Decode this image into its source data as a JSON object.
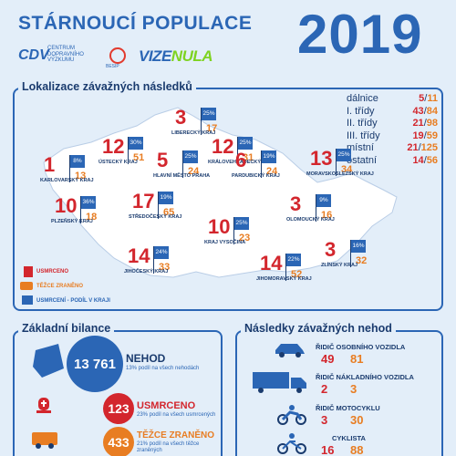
{
  "header": {
    "title": "STÁRNOUCÍ POPULACE",
    "year": "2019",
    "logos": {
      "cdv_mark": "CDV",
      "cdv_text_1": "CENTRUM",
      "cdv_text_2": "DOPRAVNÍHO",
      "cdv_text_3": "VÝZKUMU",
      "besip": "BESIP",
      "vize": "VIZE",
      "nula": "NULA"
    }
  },
  "map_section": {
    "title": "Lokalizace závažných následků",
    "road_types": [
      {
        "label": "dálnice",
        "deaths": "5",
        "injuries": "11"
      },
      {
        "label": "I. třídy",
        "deaths": "43",
        "injuries": "84"
      },
      {
        "label": "II. třídy",
        "deaths": "21",
        "injuries": "98"
      },
      {
        "label": "III. třídy",
        "deaths": "19",
        "injuries": "59"
      },
      {
        "label": "místní",
        "deaths": "21",
        "injuries": "125"
      },
      {
        "label": "ostatní",
        "deaths": "14",
        "injuries": "56"
      }
    ],
    "regions": [
      {
        "name": "KARLOVARSKÝ KRAJ",
        "deaths": "1",
        "injuries": "13",
        "share": "8%"
      },
      {
        "name": "ÚSTECKÝ KRAJ",
        "deaths": "12",
        "injuries": "51",
        "share": "30%"
      },
      {
        "name": "LIBERECKÝ KRAJ",
        "deaths": "3",
        "injuries": "17",
        "share": "25%"
      },
      {
        "name": "KRÁLOVEHRADECKÝ KRAJ",
        "deaths": "12",
        "injuries": "31",
        "share": "25%"
      },
      {
        "name": "HLAVNÍ MĚSTO PRAHA",
        "deaths": "5",
        "injuries": "24",
        "share": "25%"
      },
      {
        "name": "PARDUBICKÝ KRAJ",
        "deaths": "6",
        "injuries": "24",
        "share": "19%"
      },
      {
        "name": "PLZEŇSKÝ KRAJ",
        "deaths": "10",
        "injuries": "18",
        "share": "36%"
      },
      {
        "name": "STŘEDOČESKÝ KRAJ",
        "deaths": "17",
        "injuries": "65",
        "share": "19%"
      },
      {
        "name": "KRAJ VYSOČINA",
        "deaths": "10",
        "injuries": "23",
        "share": "25%"
      },
      {
        "name": "OLOMOUCKÝ KRAJ",
        "deaths": "3",
        "injuries": "16",
        "share": "9%"
      },
      {
        "name": "MORAVSKOSLEZSKÝ KRAJ",
        "deaths": "13",
        "injuries": "34",
        "share": "25%"
      },
      {
        "name": "JIHOČESKÝ KRAJ",
        "deaths": "14",
        "injuries": "33",
        "share": "24%"
      },
      {
        "name": "JIHOMORAVSKÝ KRAJ",
        "deaths": "14",
        "injuries": "52",
        "share": "22%"
      },
      {
        "name": "ZLÍNSKÝ KRAJ",
        "deaths": "3",
        "injuries": "32",
        "share": "16%"
      }
    ],
    "key": {
      "killed": "USMRCENO",
      "injured": "TĚŽCE ZRANĚNO",
      "share": "USMRCENÍ - PODÍL V KRAJI"
    }
  },
  "basic": {
    "title": "Základní bilance",
    "accidents": {
      "value": "13 761",
      "label": "NEHOD",
      "sub": "13% podíl na všech nehodách"
    },
    "killed": {
      "value": "123",
      "label": "USMRCENO",
      "sub": "23% podíl na všech usmrcených"
    },
    "injured": {
      "value": "433",
      "label": "TĚŽCE ZRANĚNO",
      "sub": "21% podíl na všech těžce",
      "sub2": "zraněných"
    }
  },
  "consequences": {
    "title": "Následky závažných nehod",
    "items": [
      {
        "label": "ŘIDIČ OSOBNÍHO VOZIDLA",
        "deaths": "49",
        "injuries": "81",
        "icon": "car-icon"
      },
      {
        "label": "ŘIDIČ NÁKLADNÍHO VOZIDLA",
        "deaths": "2",
        "injuries": "3",
        "icon": "truck-icon"
      },
      {
        "label": "ŘIDIČ MOTOCYKLU",
        "deaths": "3",
        "injuries": "30",
        "icon": "motorcycle-icon"
      },
      {
        "label": "CYKLISTA",
        "deaths": "16",
        "injuries": "88",
        "icon": "bicycle-icon"
      }
    ]
  },
  "colors": {
    "blue": "#2b66b5",
    "red": "#d3262d",
    "orange": "#e87d22",
    "map": "#ffffff",
    "bg": "#e3eef9"
  }
}
